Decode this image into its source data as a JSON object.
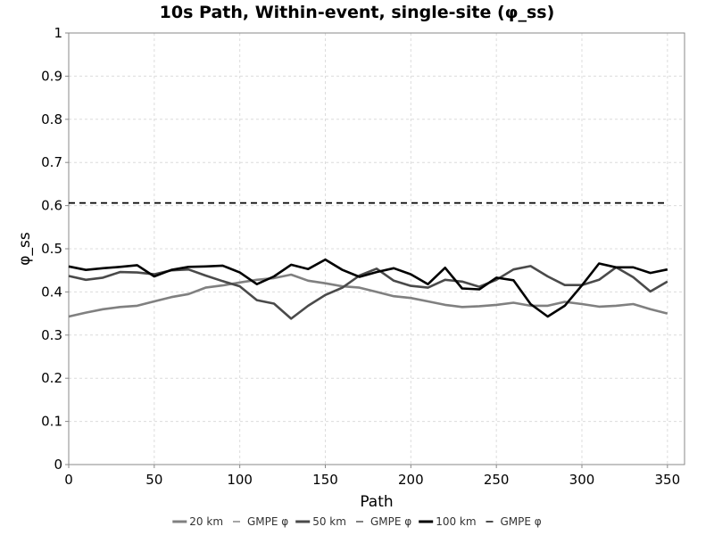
{
  "chart_data": {
    "type": "line",
    "title": "10s Path, Within-event, single-site (φ_ss)",
    "xlabel": "Path",
    "ylabel": "φ_ss",
    "xlim": [
      0,
      360
    ],
    "ylim": [
      0,
      1
    ],
    "xticks": [
      0,
      50,
      100,
      150,
      200,
      250,
      300,
      350
    ],
    "yticks": [
      0,
      0.1,
      0.2,
      0.3,
      0.4,
      0.5,
      0.6,
      0.7,
      0.8,
      0.9,
      1
    ],
    "ytick_labels": [
      "0",
      "0.1",
      "0.2",
      "0.3",
      "0.4",
      "0.5",
      "0.6",
      "0.7",
      "0.8",
      "0.9",
      "1"
    ],
    "grid": true,
    "legend_position": "bottom",
    "x": [
      0,
      10,
      20,
      30,
      40,
      50,
      60,
      70,
      80,
      90,
      100,
      110,
      120,
      130,
      140,
      150,
      160,
      170,
      180,
      190,
      200,
      210,
      220,
      230,
      240,
      250,
      260,
      270,
      280,
      290,
      300,
      310,
      320,
      330,
      340,
      350
    ],
    "series": [
      {
        "name": "20 km",
        "color": "#808080",
        "style": "solid",
        "values": [
          0.343,
          0.352,
          0.36,
          0.365,
          0.368,
          0.378,
          0.388,
          0.395,
          0.41,
          0.415,
          0.422,
          0.428,
          0.432,
          0.44,
          0.426,
          0.42,
          0.413,
          0.41,
          0.4,
          0.39,
          0.386,
          0.378,
          0.37,
          0.365,
          0.367,
          0.37,
          0.375,
          0.368,
          0.368,
          0.377,
          0.372,
          0.366,
          0.368,
          0.372,
          0.36,
          0.35
        ]
      },
      {
        "name": "GMPE φ",
        "color": "#808080",
        "style": "dashed",
        "values": [
          0.606,
          0.606,
          0.606,
          0.606,
          0.606,
          0.606,
          0.606,
          0.606,
          0.606,
          0.606,
          0.606,
          0.606,
          0.606,
          0.606,
          0.606,
          0.606,
          0.606,
          0.606,
          0.606,
          0.606,
          0.606,
          0.606,
          0.606,
          0.606,
          0.606,
          0.606,
          0.606,
          0.606,
          0.606,
          0.606,
          0.606,
          0.606,
          0.606,
          0.606,
          0.606,
          0.606
        ]
      },
      {
        "name": "50 km",
        "color": "#4a4a4a",
        "style": "solid",
        "values": [
          0.437,
          0.428,
          0.433,
          0.446,
          0.445,
          0.441,
          0.45,
          0.452,
          0.438,
          0.425,
          0.413,
          0.381,
          0.373,
          0.338,
          0.368,
          0.393,
          0.41,
          0.438,
          0.454,
          0.426,
          0.414,
          0.41,
          0.428,
          0.424,
          0.412,
          0.428,
          0.452,
          0.46,
          0.436,
          0.416,
          0.416,
          0.428,
          0.457,
          0.434,
          0.401,
          0.424
        ]
      },
      {
        "name": "GMPE φ",
        "color": "#4a4a4a",
        "style": "dashed",
        "values": [
          0.606,
          0.606,
          0.606,
          0.606,
          0.606,
          0.606,
          0.606,
          0.606,
          0.606,
          0.606,
          0.606,
          0.606,
          0.606,
          0.606,
          0.606,
          0.606,
          0.606,
          0.606,
          0.606,
          0.606,
          0.606,
          0.606,
          0.606,
          0.606,
          0.606,
          0.606,
          0.606,
          0.606,
          0.606,
          0.606,
          0.606,
          0.606,
          0.606,
          0.606,
          0.606,
          0.606
        ]
      },
      {
        "name": "100 km",
        "color": "#000000",
        "style": "solid",
        "values": [
          0.459,
          0.451,
          0.455,
          0.458,
          0.462,
          0.436,
          0.451,
          0.458,
          0.459,
          0.461,
          0.445,
          0.418,
          0.436,
          0.463,
          0.453,
          0.475,
          0.451,
          0.435,
          0.446,
          0.455,
          0.441,
          0.418,
          0.456,
          0.408,
          0.406,
          0.433,
          0.427,
          0.372,
          0.343,
          0.368,
          0.415,
          0.466,
          0.457,
          0.457,
          0.444,
          0.452
        ]
      },
      {
        "name": "GMPE φ",
        "color": "#000000",
        "style": "dashed",
        "values": [
          0.606,
          0.606,
          0.606,
          0.606,
          0.606,
          0.606,
          0.606,
          0.606,
          0.606,
          0.606,
          0.606,
          0.606,
          0.606,
          0.606,
          0.606,
          0.606,
          0.606,
          0.606,
          0.606,
          0.606,
          0.606,
          0.606,
          0.606,
          0.606,
          0.606,
          0.606,
          0.606,
          0.606,
          0.606,
          0.606,
          0.606,
          0.606,
          0.606,
          0.606,
          0.606,
          0.606
        ]
      }
    ]
  }
}
